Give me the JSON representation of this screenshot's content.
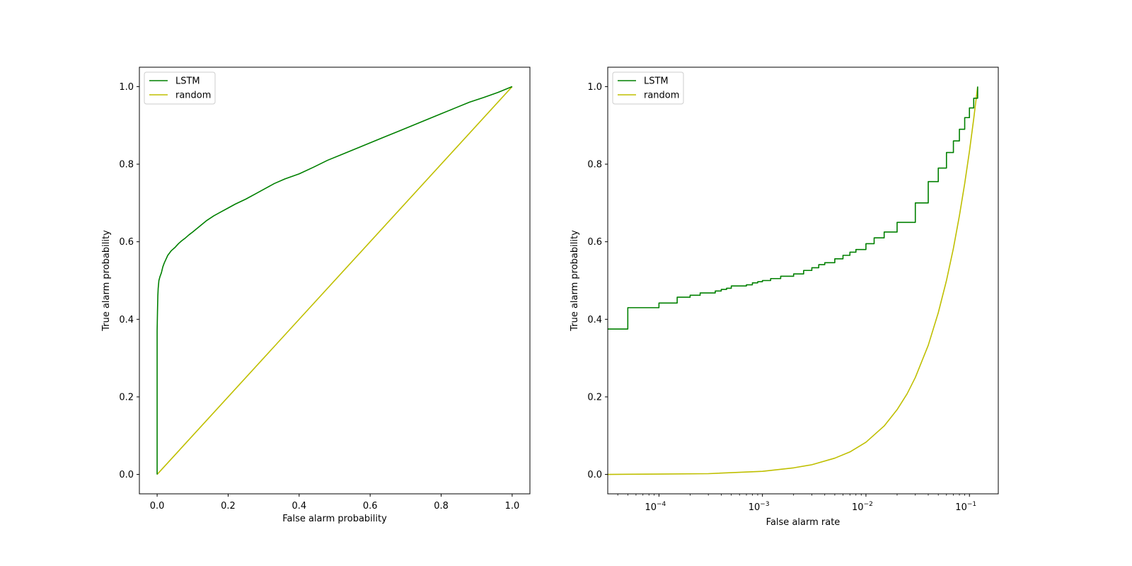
{
  "colors": {
    "lstm": "#008000",
    "random": "#bfbf00",
    "axes": "#000000",
    "background": "#ffffff"
  },
  "chart_data": [
    {
      "type": "line",
      "title": "",
      "xlabel": "False alarm probability",
      "ylabel": "True alarm probability",
      "xscale": "linear",
      "xlim": [
        -0.05,
        1.05
      ],
      "ylim": [
        -0.05,
        1.05
      ],
      "xticks": [
        0.0,
        0.2,
        0.4,
        0.6,
        0.8,
        1.0
      ],
      "xtick_labels": [
        "0.0",
        "0.2",
        "0.4",
        "0.6",
        "0.8",
        "1.0"
      ],
      "yticks": [
        0.0,
        0.2,
        0.4,
        0.6,
        0.8,
        1.0
      ],
      "ytick_labels": [
        "0.0",
        "0.2",
        "0.4",
        "0.6",
        "0.8",
        "1.0"
      ],
      "grid": false,
      "legend": "top-left",
      "series": [
        {
          "name": "LSTM",
          "color": "#008000",
          "step": false,
          "x": [
            0.0,
            0.0,
            0.0,
            0.001,
            0.002,
            0.003,
            0.005,
            0.008,
            0.012,
            0.016,
            0.02,
            0.025,
            0.03,
            0.04,
            0.05,
            0.06,
            0.07,
            0.08,
            0.09,
            0.1,
            0.12,
            0.14,
            0.16,
            0.18,
            0.2,
            0.22,
            0.25,
            0.28,
            0.3,
            0.33,
            0.36,
            0.4,
            0.44,
            0.48,
            0.52,
            0.56,
            0.6,
            0.64,
            0.68,
            0.72,
            0.76,
            0.8,
            0.84,
            0.88,
            0.92,
            0.96,
            1.0
          ],
          "y": [
            0.0,
            0.3,
            0.37,
            0.42,
            0.46,
            0.48,
            0.5,
            0.51,
            0.52,
            0.535,
            0.545,
            0.555,
            0.565,
            0.577,
            0.585,
            0.595,
            0.603,
            0.61,
            0.618,
            0.625,
            0.64,
            0.655,
            0.667,
            0.677,
            0.687,
            0.697,
            0.71,
            0.725,
            0.735,
            0.75,
            0.762,
            0.775,
            0.792,
            0.81,
            0.825,
            0.84,
            0.855,
            0.87,
            0.885,
            0.9,
            0.915,
            0.93,
            0.945,
            0.96,
            0.972,
            0.985,
            1.0
          ]
        },
        {
          "name": "random",
          "color": "#bfbf00",
          "step": false,
          "x": [
            0.0,
            1.0
          ],
          "y": [
            0.0,
            1.0
          ]
        }
      ]
    },
    {
      "type": "line",
      "title": "",
      "xlabel": "False alarm rate",
      "ylabel": "True alarm probability",
      "xscale": "log",
      "xlim": [
        3.2e-05,
        0.19
      ],
      "ylim": [
        -0.05,
        1.05
      ],
      "xticks": [
        0.0001,
        0.001,
        0.01,
        0.1
      ],
      "xtick_labels": [
        [
          "10",
          "−4"
        ],
        [
          "10",
          "−3"
        ],
        [
          "10",
          "−2"
        ],
        [
          "10",
          "−1"
        ]
      ],
      "yticks": [
        0.0,
        0.2,
        0.4,
        0.6,
        0.8,
        1.0
      ],
      "ytick_labels": [
        "0.0",
        "0.2",
        "0.4",
        "0.6",
        "0.8",
        "1.0"
      ],
      "grid": false,
      "legend": "top-left",
      "series": [
        {
          "name": "LSTM",
          "color": "#008000",
          "step": true,
          "x": [
            3.2e-05,
            5e-05,
            0.0001,
            0.00015,
            0.0002,
            0.00025,
            0.00035,
            0.0004,
            0.00045,
            0.0005,
            0.0007,
            0.0008,
            0.0009,
            0.001,
            0.0012,
            0.0015,
            0.002,
            0.0025,
            0.003,
            0.0035,
            0.004,
            0.005,
            0.006,
            0.007,
            0.008,
            0.01,
            0.012,
            0.015,
            0.02,
            0.03,
            0.04,
            0.05,
            0.06,
            0.07,
            0.08,
            0.09,
            0.1,
            0.11,
            0.12
          ],
          "y": [
            0.375,
            0.43,
            0.442,
            0.457,
            0.462,
            0.468,
            0.473,
            0.477,
            0.48,
            0.486,
            0.489,
            0.494,
            0.497,
            0.5,
            0.505,
            0.511,
            0.517,
            0.526,
            0.533,
            0.541,
            0.546,
            0.556,
            0.565,
            0.573,
            0.58,
            0.595,
            0.61,
            0.625,
            0.65,
            0.7,
            0.755,
            0.79,
            0.83,
            0.86,
            0.89,
            0.92,
            0.945,
            0.97,
            1.0
          ]
        },
        {
          "name": "random",
          "color": "#bfbf00",
          "step": false,
          "x": [
            3.2e-05,
            0.0001,
            0.0003,
            0.001,
            0.002,
            0.003,
            0.005,
            0.007,
            0.01,
            0.015,
            0.02,
            0.025,
            0.03,
            0.04,
            0.05,
            0.06,
            0.07,
            0.08,
            0.09,
            0.1,
            0.11,
            0.12
          ],
          "y": [
            0.0,
            0.001,
            0.002,
            0.008,
            0.017,
            0.025,
            0.042,
            0.058,
            0.083,
            0.125,
            0.167,
            0.208,
            0.25,
            0.333,
            0.417,
            0.5,
            0.583,
            0.667,
            0.75,
            0.833,
            0.917,
            1.0
          ]
        }
      ]
    }
  ]
}
